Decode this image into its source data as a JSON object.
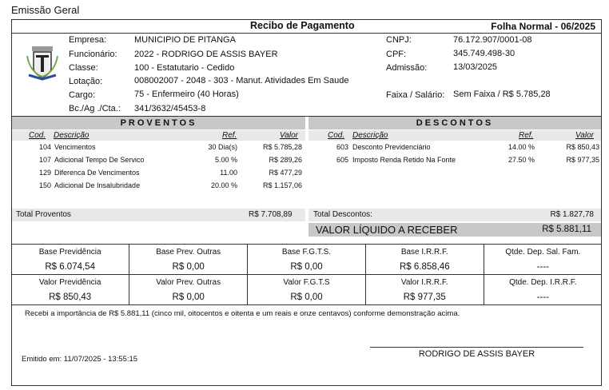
{
  "title": "Emissão Geral",
  "header": {
    "title": "Recibo de Pagamento",
    "folha": "Folha Normal - 06/2025"
  },
  "info": {
    "empresa_label": "Empresa:",
    "empresa": "MUNICIPIO DE PITANGA",
    "funcionario_label": "Funcionário:",
    "funcionario": "2022 - RODRIGO DE ASSIS BAYER",
    "classe_label": "Classe:",
    "classe": "100 - Estatutario - Cedido",
    "lotacao_label": "Lotação:",
    "lotacao": "008002007 - 2048 - 303 - Manut. Atividades Em Saude",
    "cargo_label": "Cargo:",
    "cargo": "75 - Enfermeiro (40 Horas)",
    "banco_label": "Bc./Ag ./Cta.:",
    "banco": "341/3632/45453-8",
    "cnpj_label": "CNPJ:",
    "cnpj": "76.172.907/0001-08",
    "cpf_label": "CPF:",
    "cpf": "345.749.498-30",
    "admissao_label": "Admissão:",
    "admissao": "13/03/2025",
    "faixa_label": "Faixa / Salário:",
    "faixa": "Sem Faixa / R$ 5.785,28"
  },
  "columns": {
    "cod": "Cod.",
    "desc": "Descrição",
    "ref": "Ref.",
    "valor": "Valor"
  },
  "proventos": {
    "title": "PROVENTOS",
    "items": [
      {
        "cod": "104",
        "desc": "Vencimentos",
        "ref": "30 Dia(s)",
        "valor": "R$ 5.785,28"
      },
      {
        "cod": "107",
        "desc": "Adicional Tempo De Servico",
        "ref": "5.00 %",
        "valor": "R$ 289,26"
      },
      {
        "cod": "129",
        "desc": "Diferenca De Vencimentos",
        "ref": "11.00",
        "valor": "R$ 477,29"
      },
      {
        "cod": "150",
        "desc": "Adicional De Insalubridade",
        "ref": "20.00 %",
        "valor": "R$ 1.157,06"
      }
    ],
    "total_label": "Total Proventos",
    "total": "R$ 7.708,89"
  },
  "descontos": {
    "title": "DESCONTOS",
    "items": [
      {
        "cod": "603",
        "desc": "Desconto Previdenciário",
        "ref": "14.00 %",
        "valor": "R$ 850,43"
      },
      {
        "cod": "605",
        "desc": "Imposto Renda Retido Na Fonte",
        "ref": "27.50 %",
        "valor": "R$ 977,35"
      }
    ],
    "total_label": "Total Descontos:",
    "total": "R$ 1.827,78"
  },
  "liquido": {
    "label": "VALOR LÍQUIDO A RECEBER",
    "value": "R$ 5.881,11"
  },
  "bases": [
    [
      {
        "label": "Base Previdência",
        "value": "R$ 6.074,54"
      },
      {
        "label": "Base Prev. Outras",
        "value": "R$ 0,00"
      },
      {
        "label": "Base F.G.T.S.",
        "value": "R$ 0,00"
      },
      {
        "label": "Base I.R.R.F.",
        "value": "R$ 6.858,46"
      },
      {
        "label": "Qtde. Dep. Sal. Fam.",
        "value": "----"
      }
    ],
    [
      {
        "label": "Valor Previdência",
        "value": "R$ 850,43"
      },
      {
        "label": "Valor Prev. Outras",
        "value": "R$ 0,00"
      },
      {
        "label": "Valor F.G.T.S",
        "value": "R$ 0,00"
      },
      {
        "label": "Valor I.R.R.F.",
        "value": "R$ 977,35"
      },
      {
        "label": "Qtde. Dep. I.R.R.F.",
        "value": "----"
      }
    ]
  ],
  "declaracao": "Recebi a importância de R$ 5.881,11 (cinco mil, oitocentos e oitenta e um reais e onze centavos) conforme demonstração acima.",
  "emitido": "Emitido em: 11/07/2025 - 13:55:15",
  "assinatura": "RODRIGO DE ASSIS BAYER"
}
